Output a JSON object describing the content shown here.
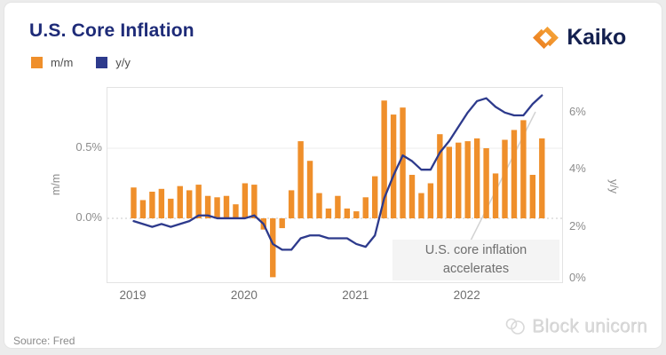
{
  "header": {
    "title": "U.S. Core Inflation",
    "logo_text": "Kaiko"
  },
  "legend": {
    "mm_label": "m/m",
    "yy_label": "y/y"
  },
  "axes": {
    "left": {
      "title": "m/m",
      "ticks": [
        "0.5%",
        "0.0%"
      ],
      "tick_values": [
        0.5,
        0.0
      ]
    },
    "right": {
      "title": "y/y",
      "ticks": [
        "6%",
        "4%",
        "2%",
        "0%"
      ],
      "tick_values": [
        6,
        4,
        2,
        0
      ]
    },
    "x": {
      "ticks": [
        "2019",
        "2020",
        "2021",
        "2022"
      ],
      "tick_month_indices": [
        0,
        12,
        24,
        36
      ]
    }
  },
  "annotation": {
    "line1": "U.S. core inflation",
    "line2": "accelerates"
  },
  "footer": {
    "source": "Source: Fred",
    "watermark": "Block unicorn"
  },
  "colors": {
    "bar": "#EF8F2B",
    "line": "#2D3A8C",
    "title": "#1E2B78",
    "grid": "#ececec",
    "zero_line": "#c9c9c9",
    "leader_line": "#d2d2d2",
    "logo_orange_dark": "#E8741A",
    "logo_orange_light": "#F7A93C"
  },
  "chart_data": {
    "type": "bar+line",
    "title": "U.S. Core Inflation",
    "x": [
      "2019-01",
      "2019-02",
      "2019-03",
      "2019-04",
      "2019-05",
      "2019-06",
      "2019-07",
      "2019-08",
      "2019-09",
      "2019-10",
      "2019-11",
      "2019-12",
      "2020-01",
      "2020-02",
      "2020-03",
      "2020-04",
      "2020-05",
      "2020-06",
      "2020-07",
      "2020-08",
      "2020-09",
      "2020-10",
      "2020-11",
      "2020-12",
      "2021-01",
      "2021-02",
      "2021-03",
      "2021-04",
      "2021-05",
      "2021-06",
      "2021-07",
      "2021-08",
      "2021-09",
      "2021-10",
      "2021-11",
      "2021-12",
      "2022-01",
      "2022-02",
      "2022-03",
      "2022-04",
      "2022-05",
      "2022-06",
      "2022-07",
      "2022-08",
      "2022-09"
    ],
    "series": [
      {
        "name": "m/m",
        "type": "bar",
        "axis": "left",
        "unit": "%",
        "values": [
          0.22,
          0.13,
          0.19,
          0.21,
          0.14,
          0.23,
          0.2,
          0.24,
          0.16,
          0.15,
          0.16,
          0.1,
          0.25,
          0.24,
          -0.08,
          -0.42,
          -0.07,
          0.2,
          0.55,
          0.41,
          0.18,
          0.07,
          0.16,
          0.07,
          0.05,
          0.15,
          0.3,
          0.84,
          0.74,
          0.79,
          0.31,
          0.18,
          0.25,
          0.6,
          0.51,
          0.54,
          0.55,
          0.57,
          0.5,
          0.32,
          0.56,
          0.63,
          0.7,
          0.31,
          0.57
        ]
      },
      {
        "name": "y/y",
        "type": "line",
        "axis": "right",
        "unit": "%",
        "values": [
          2.2,
          2.1,
          2.0,
          2.1,
          2.0,
          2.1,
          2.2,
          2.4,
          2.4,
          2.3,
          2.3,
          2.3,
          2.3,
          2.4,
          2.1,
          1.4,
          1.2,
          1.2,
          1.6,
          1.7,
          1.7,
          1.6,
          1.6,
          1.6,
          1.4,
          1.3,
          1.7,
          3.0,
          3.8,
          4.5,
          4.3,
          4.0,
          4.0,
          4.6,
          5.0,
          5.5,
          6.0,
          6.4,
          6.5,
          6.2,
          6.0,
          5.9,
          5.9,
          6.3,
          6.6
        ]
      }
    ],
    "left_axis": {
      "label": "m/m",
      "tick_values": [
        0.5,
        0.0
      ],
      "format": "percent"
    },
    "right_axis": {
      "label": "y/y",
      "tick_values": [
        6,
        4,
        2,
        0
      ],
      "range": [
        0,
        6.9
      ],
      "format": "percent"
    },
    "grid": "horizontal, solid at 0.5% (m/m), dotted at 0.0% (m/m)",
    "legend_position": "top-left",
    "annotation": "U.S. core inflation accelerates",
    "source": "Fred"
  }
}
